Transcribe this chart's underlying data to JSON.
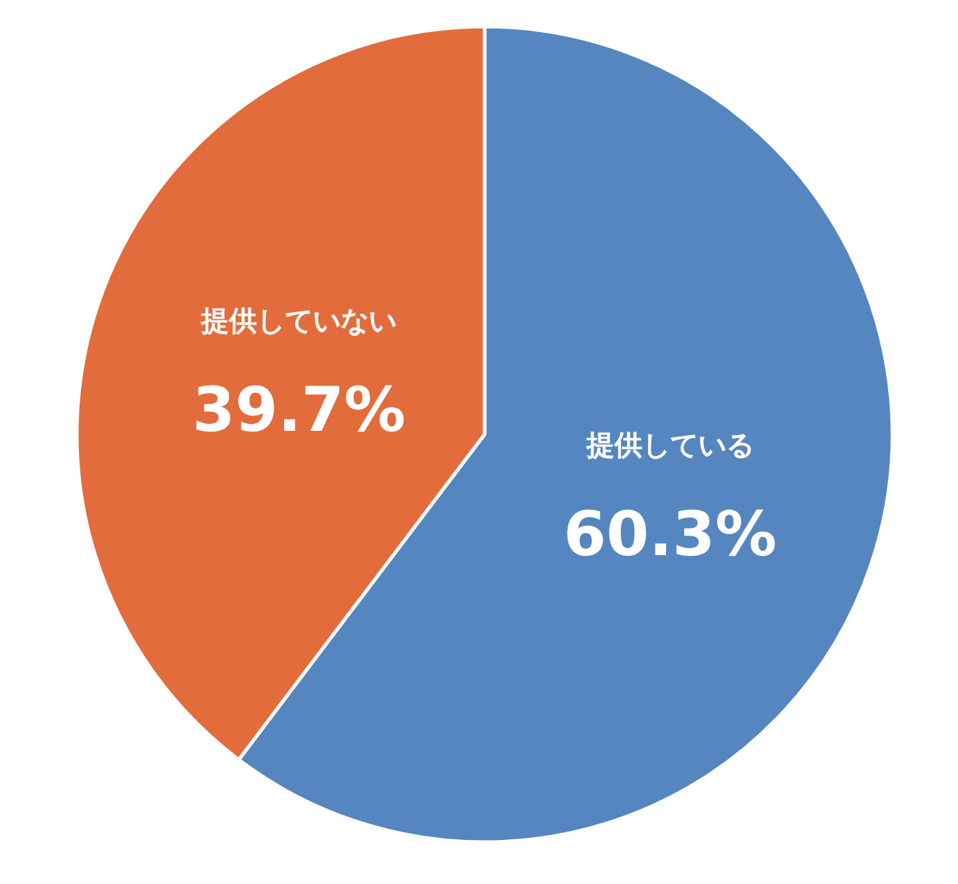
{
  "chart_data": {
    "type": "pie",
    "categories": [
      "提供している",
      "提供していない"
    ],
    "values": [
      60.3,
      39.7
    ],
    "colors": [
      "#5686bf",
      "#e36c3c"
    ],
    "value_labels": [
      "60.3%",
      "39.7%"
    ]
  }
}
